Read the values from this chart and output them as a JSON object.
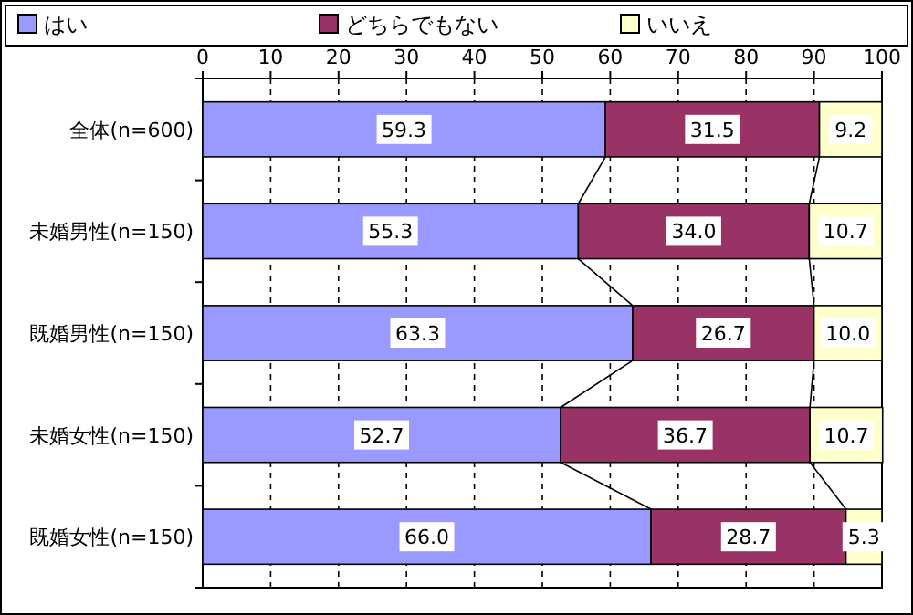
{
  "chart_data": {
    "type": "bar",
    "orientation": "horizontal",
    "stacked": true,
    "categories": [
      "全体(n=600)",
      "未婚男性(n=150)",
      "既婚男性(n=150)",
      "未婚女性(n=150)",
      "既婚女性(n=150)"
    ],
    "series": [
      {
        "name": "はい",
        "color": "#9999ff",
        "values": [
          59.3,
          55.3,
          63.3,
          52.7,
          66.0
        ],
        "value_labels": [
          "59.3",
          "55.3",
          "63.3",
          "52.7",
          "66.0"
        ]
      },
      {
        "name": "どちらでもない",
        "color": "#993366",
        "values": [
          31.5,
          34.0,
          26.7,
          36.7,
          28.7
        ],
        "value_labels": [
          "31.5",
          "34.0",
          "26.7",
          "36.7",
          "28.7"
        ]
      },
      {
        "name": "いいえ",
        "color": "#ffffcc",
        "values": [
          9.2,
          10.7,
          10.0,
          10.7,
          5.3
        ],
        "value_labels": [
          "9.2",
          "10.7",
          "10.0",
          "10.7",
          "5.3"
        ]
      }
    ],
    "xlim": [
      0,
      100
    ],
    "xticks": [
      0,
      10,
      20,
      30,
      40,
      50,
      60,
      70,
      80,
      90,
      100
    ],
    "grid": "x",
    "legend": "top"
  }
}
